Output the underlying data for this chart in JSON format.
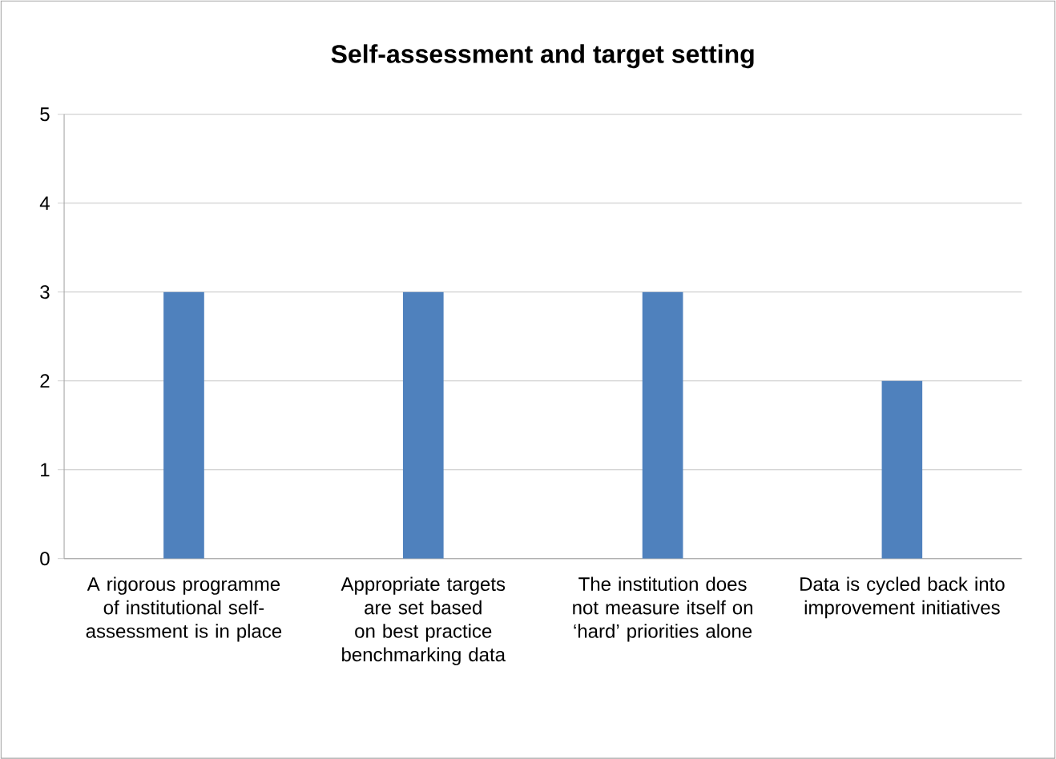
{
  "chart_data": {
    "type": "bar",
    "title": "Self-assessment and target setting",
    "categories": [
      "A rigorous programme of institutional self-assessment is in place",
      "Appropriate targets are set based on best practice benchmarking data",
      "The institution does not measure itself on ‘hard’ priorities alone",
      "Data is cycled back into improvement initiatives"
    ],
    "values": [
      3,
      3,
      3,
      2
    ],
    "color": "#4f81bd",
    "ylim": [
      0,
      5
    ],
    "yticks": [
      0,
      1,
      2,
      3,
      4,
      5
    ],
    "grid": "y"
  }
}
